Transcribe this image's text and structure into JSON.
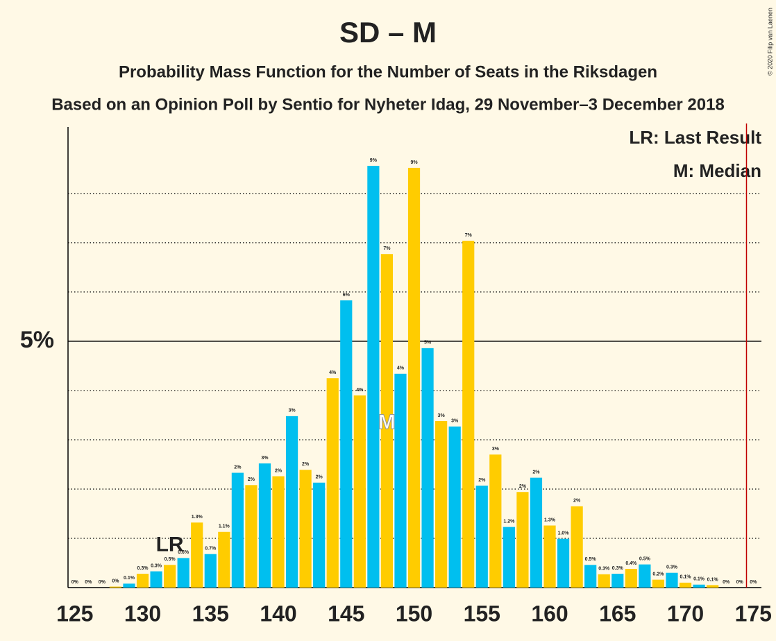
{
  "chart_data": {
    "type": "bar",
    "title": "SD – M",
    "subtitle": "Probability Mass Function for the Number of Seats in the Riksdagen",
    "subtitle2": "Based on an Opinion Poll by Sentio for Nyheter Idag, 29 November–3 December 2018",
    "copyright": "© 2020 Filip van Laenen",
    "legend": [
      "LR: Last Result",
      "M: Median"
    ],
    "legend_position": "upper right",
    "x": [
      125,
      126,
      127,
      128,
      129,
      130,
      131,
      132,
      133,
      134,
      135,
      136,
      137,
      138,
      139,
      140,
      141,
      142,
      143,
      144,
      145,
      146,
      147,
      148,
      149,
      150,
      151,
      152,
      153,
      154,
      155,
      156,
      157,
      158,
      159,
      160,
      161,
      162,
      163,
      164,
      165,
      166,
      167,
      168,
      169,
      170,
      171,
      172,
      173,
      174,
      175
    ],
    "values": [
      0,
      0,
      0,
      0.02,
      0.08,
      0.28,
      0.33,
      0.46,
      0.6,
      1.32,
      0.68,
      1.13,
      2.33,
      2.08,
      2.52,
      2.26,
      3.48,
      2.39,
      2.13,
      4.25,
      5.83,
      3.9,
      8.56,
      6.77,
      4.34,
      8.52,
      4.86,
      3.38,
      3.27,
      7.04,
      2.07,
      2.7,
      1.23,
      1.94,
      2.23,
      1.26,
      0.99,
      1.65,
      0.46,
      0.27,
      0.28,
      0.38,
      0.47,
      0.16,
      0.3,
      0.1,
      0.06,
      0.05,
      0,
      0,
      0
    ],
    "value_labels": [
      "0%",
      "0%",
      "0%",
      "0%",
      "0.1%",
      "0.3%",
      "0.3%",
      "0.5%",
      "0.6%",
      "1.3%",
      "0.7%",
      "1.1%",
      "2%",
      "2%",
      "3%",
      "2%",
      "3%",
      "2%",
      "2%",
      "4%",
      "6%",
      "4%",
      "9%",
      "7%",
      "4%",
      "9%",
      "5%",
      "3%",
      "3%",
      "7%",
      "2%",
      "3%",
      "1.2%",
      "2%",
      "2%",
      "1.3%",
      "1.0%",
      "2%",
      "0.5%",
      "0.3%",
      "0.3%",
      "0.4%",
      "0.5%",
      "0.2%",
      "0.3%",
      "0.1%",
      "0.1%",
      "0.1%",
      "0%",
      "0%",
      "0%"
    ],
    "colors": {
      "odd": "#00BFEF",
      "even": "#FFCC00"
    },
    "xlim": [
      124.5,
      175.6
    ],
    "xticks": [
      125,
      130,
      135,
      140,
      145,
      150,
      155,
      160,
      165,
      170,
      175
    ],
    "ylim": [
      0,
      9.35
    ],
    "yticks": [
      {
        "value": 5,
        "label": "5%"
      }
    ],
    "minor_grid": [
      1,
      2,
      3,
      4,
      6,
      7,
      8
    ],
    "majority_line": 174.5,
    "majority_color": "#C00000",
    "annotations": [
      {
        "text": "LR",
        "x": 132
      },
      {
        "text": "M",
        "x": 148
      }
    ]
  }
}
